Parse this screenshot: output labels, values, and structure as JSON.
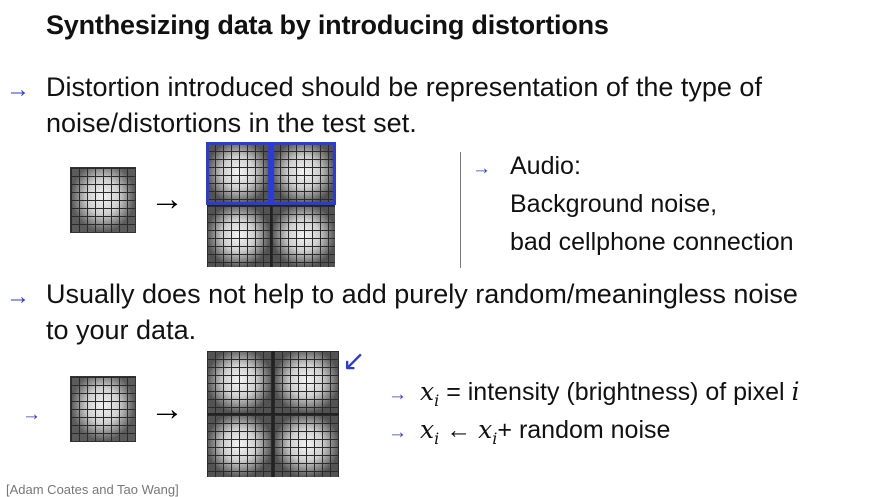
{
  "slide": {
    "title": "Synthesizing data by introducing distortions",
    "bullet1": {
      "line1": "Distortion introduced should be representation of the type of",
      "line2": "noise/distortions in the test set."
    },
    "audio": {
      "head": "Audio:",
      "line1": "Background noise,",
      "line2": "bad cellphone connection"
    },
    "bullet2": {
      "line1": "Usually does not help to add purely random/meaningless noise",
      "line2": "to your data."
    },
    "formula1": {
      "var": "x",
      "sub": "i",
      "eq": "=",
      "text": "intensity (brightness) of pixel",
      "ivar": "i"
    },
    "formula2": {
      "var": "x",
      "sub": "i",
      "op": "←",
      "rhs_var": "x",
      "rhs_sub": "i",
      "plus": "+",
      "text": "random noise"
    },
    "footer": "[Adam Coates and Tao Wang]"
  },
  "icons": {
    "bullet_arrow": "→",
    "big_arrow": "→",
    "annotation_arrow": "↙"
  },
  "colors": {
    "annotation": "#2b3bd6",
    "text": "#111111"
  }
}
